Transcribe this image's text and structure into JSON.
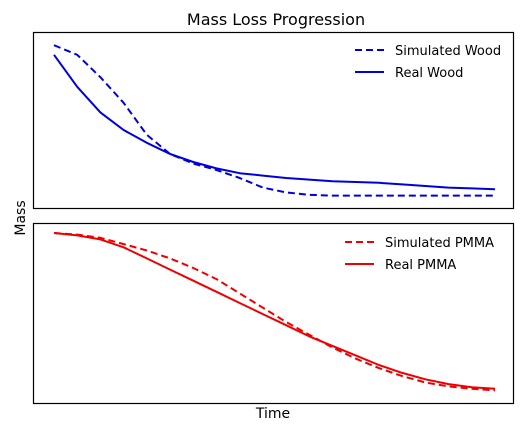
{
  "chart_data": {
    "type": "line",
    "title": "Mass Loss Progression",
    "xlabel": "Time",
    "ylabel": "Mass",
    "grid": false,
    "xlim": [
      0,
      1
    ],
    "panels": [
      {
        "id": "wood",
        "legend_position": "top-right",
        "ylim": [
          0,
          1
        ],
        "series": [
          {
            "name": "Simulated Wood",
            "color": "#0000dd",
            "style": "dashed",
            "x": [
              0.05,
              0.1,
              0.15,
              0.2,
              0.25,
              0.3,
              0.35,
              0.4,
              0.45,
              0.5,
              0.55,
              0.6,
              0.65,
              0.7,
              0.75,
              0.8,
              0.85,
              0.9,
              0.95,
              1.0
            ],
            "y": [
              0.98,
              0.92,
              0.78,
              0.62,
              0.42,
              0.3,
              0.24,
              0.2,
              0.15,
              0.09,
              0.06,
              0.045,
              0.04,
              0.04,
              0.04,
              0.04,
              0.04,
              0.04,
              0.04,
              0.04
            ]
          },
          {
            "name": "Real Wood",
            "color": "#0000dd",
            "style": "solid",
            "x": [
              0.05,
              0.1,
              0.15,
              0.2,
              0.25,
              0.3,
              0.35,
              0.4,
              0.45,
              0.5,
              0.55,
              0.6,
              0.65,
              0.7,
              0.75,
              0.8,
              0.85,
              0.9,
              0.95,
              1.0
            ],
            "y": [
              0.92,
              0.72,
              0.56,
              0.45,
              0.37,
              0.3,
              0.25,
              0.21,
              0.18,
              0.165,
              0.15,
              0.14,
              0.13,
              0.125,
              0.12,
              0.11,
              0.1,
              0.09,
              0.085,
              0.08
            ]
          }
        ]
      },
      {
        "id": "pmma",
        "legend_position": "top-right",
        "ylim": [
          0,
          1
        ],
        "series": [
          {
            "name": "Simulated PMMA",
            "color": "#ee0000",
            "style": "dashed",
            "x": [
              0.05,
              0.1,
              0.15,
              0.2,
              0.25,
              0.3,
              0.35,
              0.4,
              0.45,
              0.5,
              0.55,
              0.6,
              0.65,
              0.7,
              0.75,
              0.8,
              0.85,
              0.9,
              0.95,
              1.0
            ],
            "y": [
              1.0,
              0.99,
              0.97,
              0.93,
              0.89,
              0.84,
              0.78,
              0.71,
              0.62,
              0.53,
              0.44,
              0.36,
              0.28,
              0.21,
              0.15,
              0.1,
              0.06,
              0.035,
              0.02,
              0.01
            ]
          },
          {
            "name": "Real PMMA",
            "color": "#ee0000",
            "style": "solid",
            "x": [
              0.05,
              0.1,
              0.15,
              0.2,
              0.25,
              0.3,
              0.35,
              0.4,
              0.45,
              0.5,
              0.55,
              0.6,
              0.65,
              0.7,
              0.75,
              0.8,
              0.85,
              0.9,
              0.95,
              1.0
            ],
            "y": [
              1.0,
              0.985,
              0.96,
              0.91,
              0.84,
              0.77,
              0.7,
              0.63,
              0.56,
              0.49,
              0.42,
              0.35,
              0.29,
              0.23,
              0.17,
              0.12,
              0.08,
              0.05,
              0.03,
              0.02
            ]
          }
        ]
      }
    ]
  }
}
